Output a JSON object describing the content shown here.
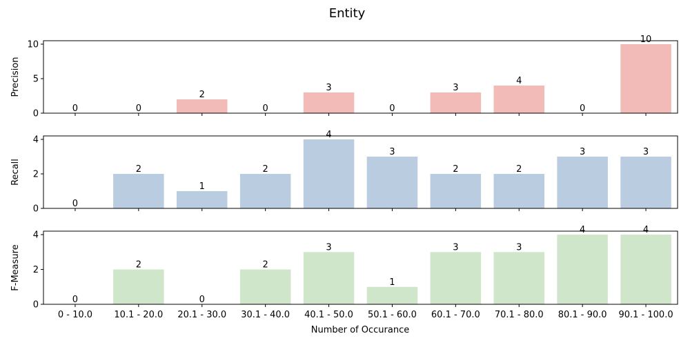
{
  "chart_data": {
    "type": "bar",
    "title": "Entity",
    "xlabel": "Number of Occurance",
    "categories": [
      "0 - 10.0",
      "10.1 - 20.0",
      "20.1 - 30.0",
      "30.1 - 40.0",
      "40.1 - 50.0",
      "50.1 - 60.0",
      "60.1 - 70.0",
      "70.1 - 80.0",
      "80.1 - 90.0",
      "90.1 - 100.0"
    ],
    "legend": "none",
    "grid": false,
    "panels": [
      {
        "ylabel": "Precision",
        "values": [
          0,
          0,
          2,
          0,
          3,
          0,
          3,
          4,
          0,
          10
        ],
        "ylim": [
          0,
          10.5
        ],
        "yticks": [
          0,
          5,
          10
        ],
        "color": "#f2bbb7"
      },
      {
        "ylabel": "Recall",
        "values": [
          0,
          2,
          1,
          2,
          4,
          3,
          2,
          2,
          3,
          3
        ],
        "ylim": [
          0,
          4.2
        ],
        "yticks": [
          0,
          2,
          4
        ],
        "color": "#b9cce0"
      },
      {
        "ylabel": "F-Measure",
        "values": [
          0,
          2,
          0,
          2,
          3,
          1,
          3,
          3,
          4,
          4
        ],
        "ylim": [
          0,
          4.2
        ],
        "yticks": [
          0,
          2,
          4
        ],
        "color": "#d0e6ca"
      }
    ]
  }
}
